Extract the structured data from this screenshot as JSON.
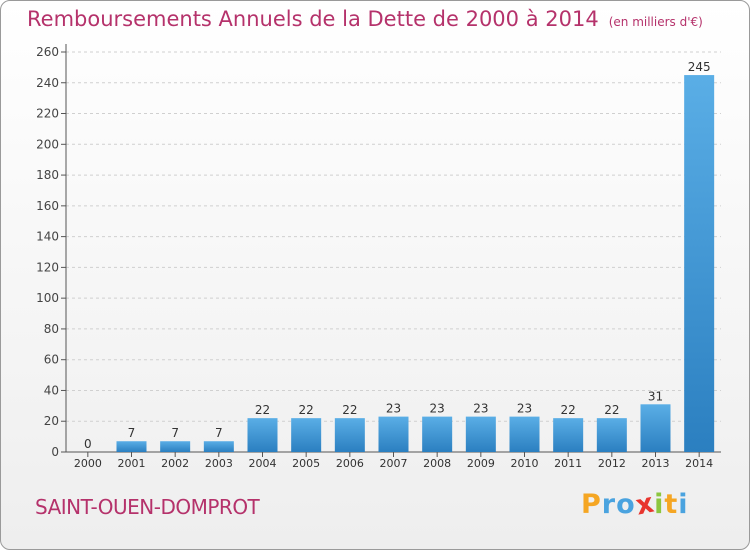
{
  "header": {
    "title": "Remboursements Annuels de la Dette de 2000 à 2014",
    "unit": "(en milliers d'€)"
  },
  "commune": "SAINT-OUEN-DOMPROT",
  "logo": {
    "letters": [
      "P",
      "r",
      "o",
      "x",
      "i",
      "t",
      "i"
    ],
    "colors": [
      "#f5a623",
      "#4aa3df",
      "#4aa3df",
      "#e8352e",
      "#8cc63f",
      "#f5a623",
      "#4aa3df"
    ],
    "name": "Proxiti"
  },
  "colors": {
    "accent": "#b5326b",
    "bar_light": "#5aaee6",
    "bar_dark": "#2b7fc0",
    "axis": "#555555"
  },
  "chart_data": {
    "type": "bar",
    "categories": [
      "2000",
      "2001",
      "2002",
      "2003",
      "2004",
      "2005",
      "2006",
      "2007",
      "2008",
      "2009",
      "2010",
      "2011",
      "2012",
      "2013",
      "2014"
    ],
    "values": [
      0,
      7,
      7,
      7,
      22,
      22,
      22,
      23,
      23,
      23,
      23,
      22,
      22,
      31,
      245
    ],
    "ylim": [
      0,
      260
    ],
    "yticks": [
      0,
      20,
      40,
      60,
      80,
      100,
      120,
      140,
      160,
      180,
      200,
      220,
      240,
      260
    ],
    "grid": true,
    "data_labels": true
  }
}
